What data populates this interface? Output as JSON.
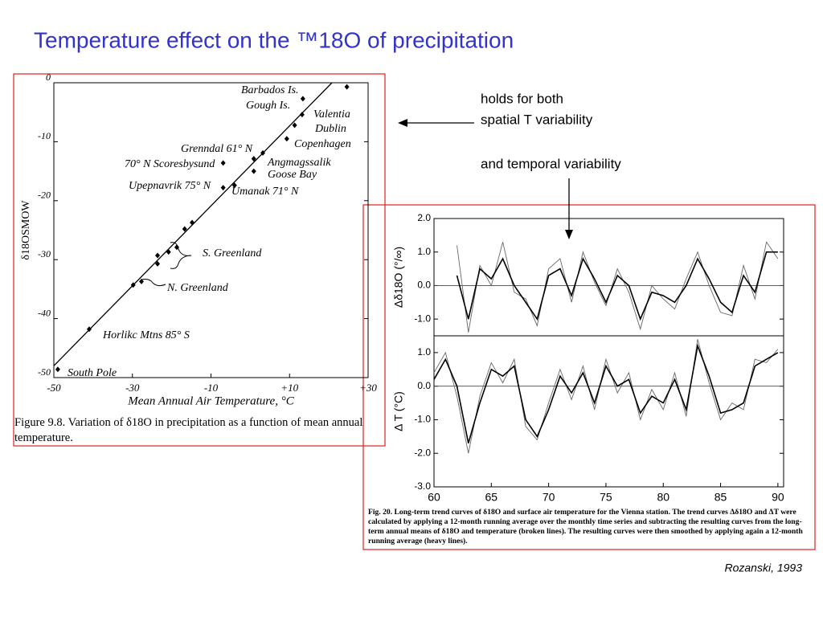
{
  "title": "Temperature effect on the ™18O of precipitation",
  "notes": [
    "holds for both",
    "spatial T variability",
    "and temporal variability"
  ],
  "citation": "Rozanski, 1993",
  "chart_data": [
    {
      "type": "scatter",
      "xlabel": "Mean Annual Air Temperature, °C",
      "ylabel": "δ18OSMOW",
      "caption": "Figure 9.8.  Variation of δ18O in precipitation as a function of mean annual temperature.",
      "xlim": [
        -50,
        30
      ],
      "ylim": [
        -50,
        0
      ],
      "xticks": [
        -50,
        -30,
        -10,
        {
          "value": 10,
          "label": "+10"
        },
        {
          "value": 30,
          "label": "+30"
        }
      ],
      "yticks": [
        0,
        -10,
        -20,
        -30,
        -40,
        -50
      ],
      "color": "#000000",
      "series": [
        {
          "x": [
            24.6,
            13.4,
            13.2,
            11.3,
            9.3,
            3.2,
            0.9,
            0.9,
            -6.9,
            -6.9,
            -4.0,
            -14.8,
            -16.7,
            -18.7,
            -20.8,
            -23.6,
            -23.6,
            -27.7,
            -29.8,
            -41.0,
            -49.0
          ],
          "values": [
            -0.7,
            -2.7,
            -5.4,
            -7.2,
            -9.5,
            -11.9,
            -12.9,
            -15.0,
            -13.6,
            -17.8,
            -17.4,
            -23.7,
            -24.8,
            -27.9,
            -28.7,
            -29.3,
            -30.7,
            -33.7,
            -34.3,
            -41.8,
            -48.6
          ]
        }
      ],
      "trend": {
        "x": [
          -50,
          20.8
        ],
        "values": [
          -48,
          0
        ]
      },
      "annotations": [
        "Barbados Is.",
        "Gough Is.",
        "Valentia",
        "Dublin",
        "Copenhagen",
        "Grenndal 61° N",
        "70° N Scoresbysund",
        "Angmagssalik",
        "Goose Bay",
        "Upepnavrik 75° N",
        "Umanak 71° N",
        "S. Greenland",
        "N. Greenland",
        "Horlikc Mtns 85° S",
        "South Pole"
      ]
    },
    {
      "type": "line",
      "ylabel": "Δδ18O  (°/∞)",
      "xlim": [
        60,
        90.5
      ],
      "ylim": [
        -1.5,
        2.0
      ],
      "yticks": [
        {
          "value": 2,
          "label": "2.0"
        },
        {
          "value": 1,
          "label": "1.0"
        },
        {
          "value": 0,
          "label": "0.0"
        },
        {
          "value": -1,
          "label": "-1.0"
        }
      ],
      "series": [
        {
          "color": "#666666",
          "x": [
            62,
            63,
            64,
            65,
            66,
            67,
            68,
            69,
            70,
            71,
            72,
            73,
            74,
            75,
            76,
            77,
            78,
            79,
            80,
            81,
            82,
            83,
            84,
            85,
            86,
            87,
            88,
            89,
            90
          ],
          "values": [
            1.2,
            -1.4,
            0.6,
            0.0,
            1.3,
            -0.2,
            -0.4,
            -1.2,
            0.5,
            0.8,
            -0.5,
            1.0,
            0.1,
            -0.6,
            0.5,
            -0.2,
            -1.3,
            0.0,
            -0.4,
            -0.7,
            0.2,
            1.0,
            0.0,
            -0.8,
            -0.9,
            0.6,
            -0.4,
            1.3,
            0.8
          ]
        },
        {
          "color": "#000000",
          "x": [
            62,
            63,
            64,
            65,
            66,
            67,
            68,
            69,
            70,
            71,
            72,
            73,
            74,
            75,
            76,
            77,
            78,
            79,
            80,
            81,
            82,
            83,
            84,
            85,
            86,
            87,
            88,
            89,
            90
          ],
          "values": [
            0.3,
            -1.0,
            0.5,
            0.2,
            0.8,
            0.0,
            -0.5,
            -1.0,
            0.3,
            0.5,
            -0.3,
            0.8,
            0.2,
            -0.5,
            0.3,
            0.0,
            -1.0,
            -0.2,
            -0.3,
            -0.5,
            0.0,
            0.8,
            0.2,
            -0.5,
            -0.8,
            0.3,
            -0.2,
            1.0,
            1.0
          ]
        }
      ]
    },
    {
      "type": "line",
      "ylabel": "Δ T (°C)",
      "caption": "Fig. 20. Long-term trend curves of δ18O and surface air temperature for the Vienna station. The trend curves Δδ18O and ΔT were calculated by applying a 12-month running average over the monthly time series and subtracting the resulting curves from the long-term annual means of δ18O and temperature (broken lines). The resulting curves were then smoothed by applying again a 12-month running average (heavy lines).",
      "xlim": [
        60,
        90.5
      ],
      "ylim": [
        -3.0,
        1.5
      ],
      "xticks": [
        60,
        65,
        70,
        75,
        80,
        85,
        90
      ],
      "yticks": [
        {
          "value": 1,
          "label": "1.0"
        },
        {
          "value": 0,
          "label": "0.0"
        },
        {
          "value": -1,
          "label": "-1.0"
        },
        {
          "value": -2,
          "label": "-2.0"
        },
        {
          "value": -3,
          "label": "-3.0"
        }
      ],
      "series": [
        {
          "color": "#666666",
          "x": [
            60,
            61,
            62,
            63,
            64,
            65,
            66,
            67,
            68,
            69,
            70,
            71,
            72,
            73,
            74,
            75,
            76,
            77,
            78,
            79,
            80,
            81,
            82,
            83,
            84,
            85,
            86,
            87,
            88,
            89,
            90
          ],
          "values": [
            0.4,
            1.0,
            -0.3,
            -2.0,
            -0.3,
            0.7,
            0.1,
            0.8,
            -1.2,
            -1.6,
            -0.5,
            0.5,
            -0.4,
            0.6,
            -0.7,
            0.8,
            -0.2,
            0.4,
            -1.0,
            -0.1,
            -0.7,
            0.4,
            -0.9,
            1.4,
            0.1,
            -1.0,
            -0.5,
            -0.7,
            0.8,
            0.7,
            1.1
          ]
        },
        {
          "color": "#000000",
          "x": [
            60,
            61,
            62,
            63,
            64,
            65,
            66,
            67,
            68,
            69,
            70,
            71,
            72,
            73,
            74,
            75,
            76,
            77,
            78,
            79,
            80,
            81,
            82,
            83,
            84,
            85,
            86,
            87,
            88,
            89,
            90
          ],
          "values": [
            0.2,
            0.8,
            0.0,
            -1.7,
            -0.5,
            0.5,
            0.3,
            0.6,
            -1.0,
            -1.5,
            -0.7,
            0.3,
            -0.2,
            0.4,
            -0.5,
            0.6,
            0.0,
            0.2,
            -0.8,
            -0.3,
            -0.5,
            0.2,
            -0.7,
            1.2,
            0.3,
            -0.8,
            -0.7,
            -0.5,
            0.6,
            0.8,
            1.0
          ]
        }
      ]
    }
  ]
}
